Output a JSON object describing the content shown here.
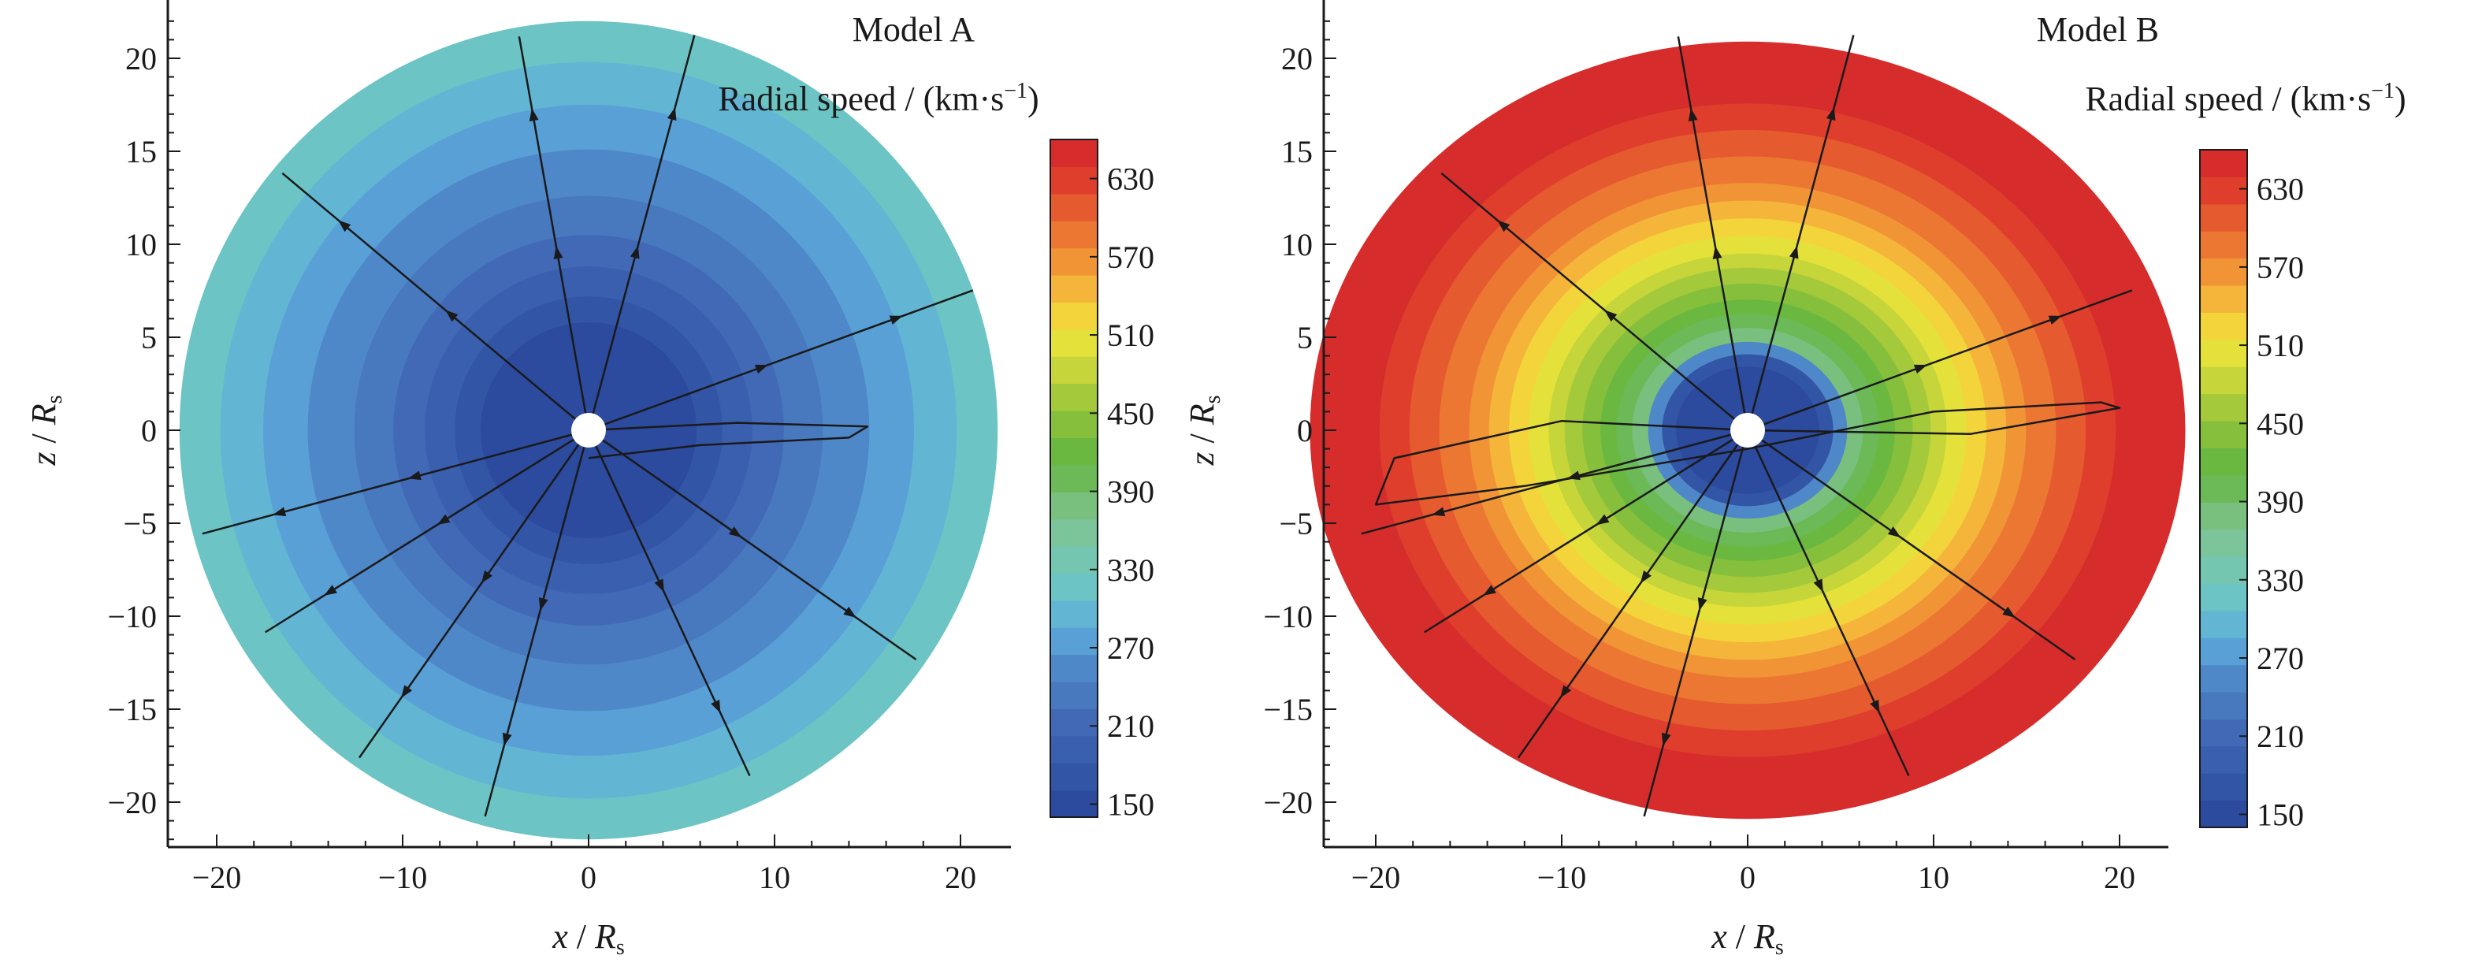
{
  "figure": {
    "x_title_main": "x",
    "x_title_sep": " / ",
    "x_title_var": "R",
    "x_title_sub": "s",
    "y_title_main": "z",
    "y_title_sep": " / ",
    "y_title_var": "R",
    "y_title_sub": "s",
    "legend_title_main": "Radial speed / (km·s",
    "legend_title_sup": "−1",
    "legend_title_end": ")"
  },
  "palettes": {
    "colorbar_levels": [
      "#2c4a9e",
      "#3355a6",
      "#3a5fae",
      "#4169b6",
      "#4878be",
      "#4f88c8",
      "#58a0d6",
      "#62b6d4",
      "#6cc4c4",
      "#74c6b0",
      "#7cc49a",
      "#79bf7d",
      "#6bb957",
      "#6bb840",
      "#86bf3c",
      "#a4c93a",
      "#c5d53a",
      "#e4e23a",
      "#f3d43a",
      "#f5b53a",
      "#f19436",
      "#ec7732",
      "#e55a2e",
      "#df3e2c",
      "#d62d2c"
    ],
    "model_a_rings": [
      "#6cc4c4",
      "#62b6d4",
      "#58a0d6",
      "#4f88c8",
      "#4878be",
      "#4169b6",
      "#3a5fae",
      "#3355a6",
      "#2c4a9e"
    ],
    "model_b_rings": [
      "#d62d2c",
      "#df3e2c",
      "#e55a2e",
      "#ec7732",
      "#f19436",
      "#f5b53a",
      "#f3d43a",
      "#e4e23a",
      "#c5d53a",
      "#a4c93a",
      "#86bf3c",
      "#6bb840",
      "#6bb957",
      "#79bf7d",
      "#4f88c8",
      "#3355a6",
      "#2c4a9e"
    ],
    "streamline_color": "#1a1a1a"
  },
  "chart_data": [
    {
      "type": "heatmap",
      "title": "Model A",
      "xlabel": "x / Rs",
      "ylabel": "z / Rs",
      "xlim": [
        -22.5,
        22.5
      ],
      "ylim": [
        -22.5,
        22.5
      ],
      "x_ticks": [
        -20,
        -10,
        0,
        10,
        20
      ],
      "x_tick_labels": [
        "−20",
        "−10",
        "0",
        "10",
        "20"
      ],
      "y_ticks": [
        20,
        15,
        10,
        5,
        0,
        -5,
        -10,
        -15,
        -20
      ],
      "y_tick_labels": [
        "20",
        "15",
        "10",
        "5",
        "0",
        "−5",
        "−10",
        "−15",
        "−20"
      ],
      "colorbar": {
        "label": "Radial speed / (km·s−1)",
        "min": 140,
        "max": 660,
        "ticks": [
          150,
          210,
          270,
          330,
          390,
          450,
          510,
          570,
          630
        ],
        "tick_labels": [
          "150",
          "210",
          "270",
          "330",
          "390",
          "450",
          "510",
          "570",
          "630"
        ]
      },
      "ring_radii": [
        22,
        19.8,
        17.5,
        15.1,
        12.6,
        10.5,
        8.8,
        7.2,
        5.8
      ],
      "ring_speeds": [
        275,
        250,
        230,
        215,
        200,
        185,
        170,
        160,
        150
      ],
      "radial_field_line_angles_deg": [
        100,
        75,
        140,
        20,
        195,
        212,
        235,
        255,
        295,
        325
      ],
      "radial_field_line_lengths": [
        21.5,
        22,
        21.5,
        22,
        21.5,
        20.5,
        21.5,
        21.5,
        20.5,
        21.5
      ],
      "closed_loop": {
        "x": [
          0,
          8,
          15,
          14,
          6,
          0
        ],
        "z": [
          0,
          0.4,
          0.2,
          -0.4,
          -0.8,
          -1.5
        ]
      }
    },
    {
      "type": "heatmap",
      "title": "Model B",
      "xlabel": "x / Rs",
      "ylabel": "z / Rs",
      "xlim": [
        -22.5,
        22.5
      ],
      "ylim": [
        -22.5,
        22.5
      ],
      "x_ticks": [
        -20,
        -10,
        0,
        10,
        20
      ],
      "x_tick_labels": [
        "−20",
        "−10",
        "0",
        "10",
        "20"
      ],
      "y_ticks": [
        20,
        15,
        10,
        5,
        0,
        -5,
        -10,
        -15,
        -20
      ],
      "y_tick_labels": [
        "20",
        "15",
        "10",
        "5",
        "0",
        "−5",
        "−10",
        "−15",
        "−20"
      ],
      "colorbar": {
        "label": "Radial speed / (km·s−1)",
        "min": 140,
        "max": 660,
        "ticks": [
          150,
          210,
          270,
          330,
          390,
          450,
          510,
          570,
          630
        ],
        "tick_labels": [
          "150",
          "210",
          "270",
          "330",
          "390",
          "450",
          "510",
          "570",
          "630"
        ]
      },
      "ring_radii": [
        22,
        18.5,
        17,
        15.5,
        14,
        13,
        12,
        11,
        10,
        9.2,
        8.3,
        7.4,
        6.6,
        5.8,
        5,
        4.3,
        3.6
      ],
      "ring_speeds": [
        650,
        630,
        610,
        590,
        570,
        550,
        530,
        510,
        490,
        470,
        440,
        420,
        400,
        380,
        250,
        190,
        150
      ],
      "radial_field_line_angles_deg": [
        100,
        75,
        140,
        20,
        195,
        212,
        235,
        255,
        295,
        325
      ],
      "radial_field_line_lengths": [
        21.5,
        22,
        21.5,
        22,
        21.5,
        20.5,
        21.5,
        21.5,
        20.5,
        21.5
      ],
      "closed_loop": {
        "x": [
          0,
          -10,
          -19,
          -20,
          -12,
          0,
          10,
          19,
          20,
          12,
          0
        ],
        "z": [
          0,
          0.5,
          -1.5,
          -4,
          -3,
          -1,
          1,
          1.5,
          1.2,
          -0.2,
          0
        ]
      }
    }
  ]
}
